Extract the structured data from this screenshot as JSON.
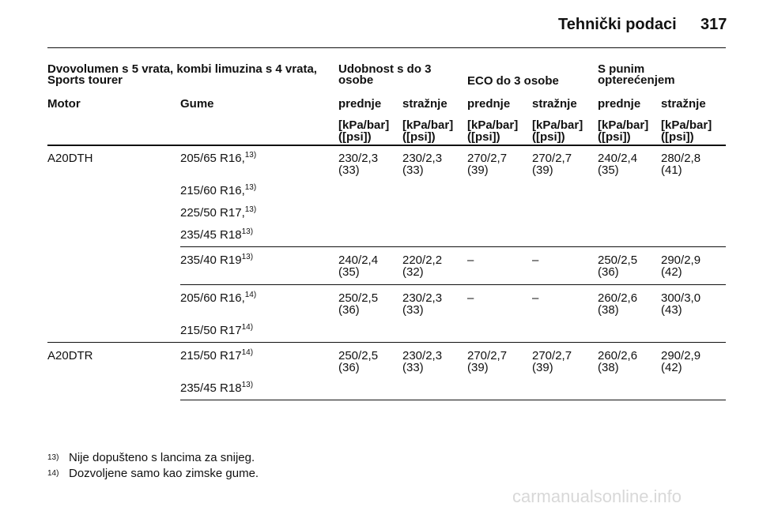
{
  "header": {
    "title": "Tehnički podaci",
    "page": "317"
  },
  "table": {
    "heading": {
      "model": "Dvovolumen s 5 vrata, kombi limuzina s 4 vrata, Sports tourer",
      "groups": [
        "Udobnost s do 3 osobe",
        "ECO do 3 osobe",
        "S punim opterećenjem"
      ]
    },
    "columns": [
      "Motor",
      "Gume",
      "prednje",
      "stražnje",
      "prednje",
      "stražnje",
      "prednje",
      "stražnje"
    ],
    "units": [
      [
        "[kPa/bar]",
        "([psi])"
      ],
      [
        "[kPa/bar]",
        "([psi])"
      ],
      [
        "[kPa/bar]",
        "([psi])"
      ],
      [
        "[kPa/bar]",
        "([psi])"
      ],
      [
        "[kPa/bar]",
        "([psi])"
      ],
      [
        "[kPa/bar]",
        "([psi])"
      ]
    ],
    "engines": [
      {
        "name": "A20DTH",
        "blocks": [
          {
            "rows": [
              {
                "tire": {
                  "size": "205/65 R16,",
                  "note": "13)"
                },
                "pressures": [
                  [
                    "230/2,3",
                    "(33)"
                  ],
                  [
                    "230/2,3",
                    "(33)"
                  ],
                  [
                    "270/2,7",
                    "(39)"
                  ],
                  [
                    "270/2,7",
                    "(39)"
                  ],
                  [
                    "240/2,4",
                    "(35)"
                  ],
                  [
                    "280/2,8",
                    "(41)"
                  ]
                ]
              },
              {
                "tire": {
                  "size": "215/60 R16,",
                  "note": "13)"
                }
              },
              {
                "tire": {
                  "size": "225/50 R17,",
                  "note": "13)"
                }
              },
              {
                "tire": {
                  "size": "235/45 R18",
                  "note": "13)"
                }
              }
            ]
          },
          {
            "rows": [
              {
                "tire": {
                  "size": "235/40 R19",
                  "note": "13)"
                },
                "pressures": [
                  [
                    "240/2,4",
                    "(35)"
                  ],
                  [
                    "220/2,2",
                    "(32)"
                  ],
                  [
                    "–"
                  ],
                  [
                    "–"
                  ],
                  [
                    "250/2,5",
                    "(36)"
                  ],
                  [
                    "290/2,9",
                    "(42)"
                  ]
                ]
              }
            ]
          },
          {
            "rows": [
              {
                "tire": {
                  "size": "205/60 R16,",
                  "note": "14)"
                },
                "pressures": [
                  [
                    "250/2,5",
                    "(36)"
                  ],
                  [
                    "230/2,3",
                    "(33)"
                  ],
                  [
                    "–"
                  ],
                  [
                    "–"
                  ],
                  [
                    "260/2,6",
                    "(38)"
                  ],
                  [
                    "300/3,0",
                    "(43)"
                  ]
                ]
              },
              {
                "tire": {
                  "size": "215/50 R17",
                  "note": "14)"
                }
              }
            ]
          }
        ]
      },
      {
        "name": "A20DTR",
        "blocks": [
          {
            "rows": [
              {
                "tire": {
                  "size": "215/50 R17",
                  "note": "14)"
                },
                "pressures": [
                  [
                    "250/2,5",
                    "(36)"
                  ],
                  [
                    "230/2,3",
                    "(33)"
                  ],
                  [
                    "270/2,7",
                    "(39)"
                  ],
                  [
                    "270/2,7",
                    "(39)"
                  ],
                  [
                    "260/2,6",
                    "(38)"
                  ],
                  [
                    "290/2,9",
                    "(42)"
                  ]
                ]
              },
              {
                "tire": {
                  "size": "235/45 R18",
                  "note": "13)"
                }
              }
            ]
          }
        ]
      }
    ]
  },
  "footnotes": [
    {
      "mark": "13)",
      "text": "Nije dopušteno s lancima za snijeg."
    },
    {
      "mark": "14)",
      "text": "Dozvoljene samo kao zimske gume."
    }
  ],
  "watermark": "carmanualsonline.info"
}
